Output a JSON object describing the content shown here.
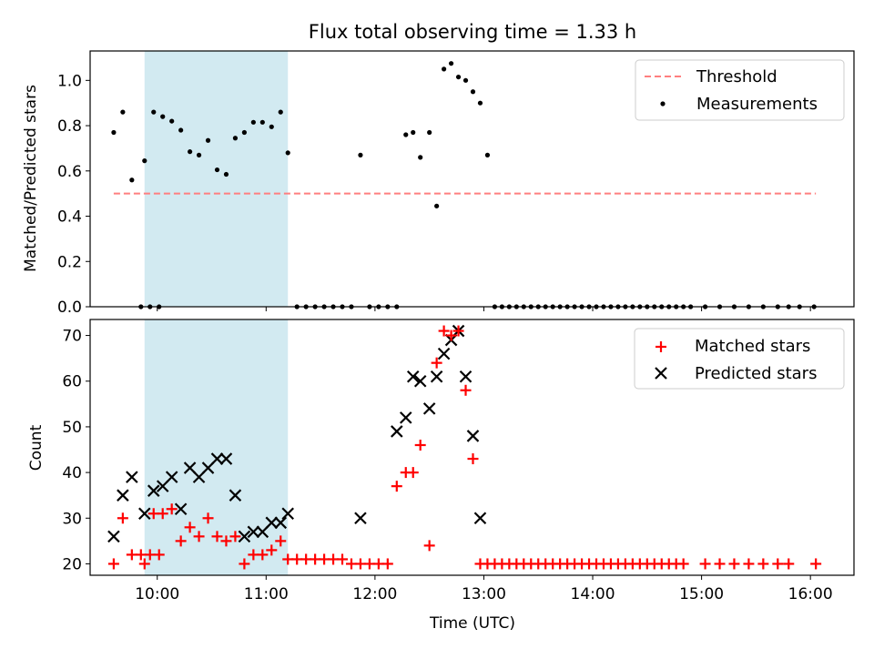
{
  "chart_data": [
    {
      "type": "scatter",
      "title": "Flux total observing time = 1.33 h",
      "ylabel": "Matched/Predicted stars",
      "xlabel": "",
      "xlim": [
        "09:23",
        "16:24"
      ],
      "ylim": [
        0.0,
        1.13
      ],
      "yticks": [
        "0.0",
        "0.2",
        "0.4",
        "0.6",
        "0.8",
        "1.0"
      ],
      "yticks_values": [
        0,
        0.2,
        0.4,
        0.6,
        0.8,
        1.0
      ],
      "legend": {
        "position": "top-right",
        "threshold_label": "Threshold",
        "measurements_label": "Measurements"
      },
      "threshold": {
        "value": 0.5,
        "x_start": "09:36",
        "x_end": "16:03",
        "color": "#ff7f7f"
      },
      "highlight_span": {
        "x_start": "09:53",
        "x_end": "11:12",
        "color": "#add8e6"
      },
      "series": [
        {
          "name": "Measurements",
          "color": "#000000",
          "points": [
            [
              "09:36",
              0.77
            ],
            [
              "09:41",
              0.86
            ],
            [
              "09:46",
              0.56
            ],
            [
              "09:51",
              0.0
            ],
            [
              "09:56",
              0.0
            ],
            [
              "10:01",
              0.0
            ],
            [
              "09:53",
              0.645
            ],
            [
              "09:58",
              0.86
            ],
            [
              "10:03",
              0.84
            ],
            [
              "10:08",
              0.82
            ],
            [
              "10:13",
              0.78
            ],
            [
              "10:18",
              0.685
            ],
            [
              "10:23",
              0.67
            ],
            [
              "10:28",
              0.735
            ],
            [
              "10:33",
              0.605
            ],
            [
              "10:38",
              0.585
            ],
            [
              "10:43",
              0.745
            ],
            [
              "10:48",
              0.77
            ],
            [
              "10:53",
              0.815
            ],
            [
              "10:58",
              0.815
            ],
            [
              "11:03",
              0.795
            ],
            [
              "11:08",
              0.86
            ],
            [
              "11:12",
              0.68
            ],
            [
              "11:17",
              0.0
            ],
            [
              "11:22",
              0.0
            ],
            [
              "11:27",
              0.0
            ],
            [
              "11:32",
              0.0
            ],
            [
              "11:37",
              0.0
            ],
            [
              "11:42",
              0.0
            ],
            [
              "11:47",
              0.0
            ],
            [
              "11:52",
              0.67
            ],
            [
              "11:57",
              0.0
            ],
            [
              "12:02",
              0.0
            ],
            [
              "12:07",
              0.0
            ],
            [
              "12:12",
              0.0
            ],
            [
              "12:17",
              0.76
            ],
            [
              "12:21",
              0.77
            ],
            [
              "12:25",
              0.66
            ],
            [
              "12:30",
              0.77
            ],
            [
              "12:34",
              0.445
            ],
            [
              "12:38",
              1.05
            ],
            [
              "12:42",
              1.075
            ],
            [
              "12:46",
              1.015
            ],
            [
              "12:50",
              1.0
            ],
            [
              "12:54",
              0.95
            ],
            [
              "12:58",
              0.9
            ],
            [
              "13:02",
              0.67
            ],
            [
              "13:06",
              0.0
            ],
            [
              "13:10",
              0.0
            ],
            [
              "13:14",
              0.0
            ],
            [
              "13:18",
              0.0
            ],
            [
              "13:22",
              0.0
            ],
            [
              "13:26",
              0.0
            ],
            [
              "13:30",
              0.0
            ],
            [
              "13:34",
              0.0
            ],
            [
              "13:38",
              0.0
            ],
            [
              "13:42",
              0.0
            ],
            [
              "13:46",
              0.0
            ],
            [
              "13:50",
              0.0
            ],
            [
              "13:54",
              0.0
            ],
            [
              "13:58",
              0.0
            ],
            [
              "14:02",
              0.0
            ],
            [
              "14:06",
              0.0
            ],
            [
              "14:10",
              0.0
            ],
            [
              "14:14",
              0.0
            ],
            [
              "14:18",
              0.0
            ],
            [
              "14:22",
              0.0
            ],
            [
              "14:26",
              0.0
            ],
            [
              "14:30",
              0.0
            ],
            [
              "14:34",
              0.0
            ],
            [
              "14:38",
              0.0
            ],
            [
              "14:42",
              0.0
            ],
            [
              "14:46",
              0.0
            ],
            [
              "14:50",
              0.0
            ],
            [
              "14:54",
              0.0
            ],
            [
              "15:02",
              0.0
            ],
            [
              "15:10",
              0.0
            ],
            [
              "15:18",
              0.0
            ],
            [
              "15:26",
              0.0
            ],
            [
              "15:34",
              0.0
            ],
            [
              "15:42",
              0.0
            ],
            [
              "15:48",
              0.0
            ],
            [
              "15:54",
              0.0
            ],
            [
              "16:02",
              0.0
            ]
          ]
        }
      ]
    },
    {
      "type": "scatter",
      "title": "",
      "xlabel": "Time (UTC)",
      "ylabel": "Count",
      "xlim": [
        "09:23",
        "16:24"
      ],
      "ylim": [
        17.5,
        73.5
      ],
      "xticks": [
        "10:00",
        "11:00",
        "12:00",
        "13:00",
        "14:00",
        "15:00",
        "16:00"
      ],
      "yticks": [
        "20",
        "30",
        "40",
        "50",
        "60",
        "70"
      ],
      "yticks_values": [
        20,
        30,
        40,
        50,
        60,
        70
      ],
      "legend": {
        "position": "top-right",
        "matched_label": "Matched stars",
        "predicted_label": "Predicted stars"
      },
      "highlight_span": {
        "x_start": "09:53",
        "x_end": "11:12",
        "color": "#add8e6"
      },
      "series": [
        {
          "name": "Matched stars",
          "marker": "plus",
          "color": "#ff0000",
          "points": [
            [
              "09:36",
              20
            ],
            [
              "09:41",
              30
            ],
            [
              "09:46",
              22
            ],
            [
              "09:51",
              22
            ],
            [
              "09:56",
              22
            ],
            [
              "10:01",
              22
            ],
            [
              "09:53",
              20
            ],
            [
              "09:58",
              31
            ],
            [
              "10:03",
              31
            ],
            [
              "10:08",
              32
            ],
            [
              "10:13",
              25
            ],
            [
              "10:18",
              28
            ],
            [
              "10:23",
              26
            ],
            [
              "10:28",
              30
            ],
            [
              "10:33",
              26
            ],
            [
              "10:38",
              25
            ],
            [
              "10:43",
              26
            ],
            [
              "10:48",
              20
            ],
            [
              "10:53",
              22
            ],
            [
              "10:58",
              22
            ],
            [
              "11:03",
              23
            ],
            [
              "11:08",
              25
            ],
            [
              "11:12",
              21
            ],
            [
              "11:17",
              21
            ],
            [
              "11:22",
              21
            ],
            [
              "11:27",
              21
            ],
            [
              "11:32",
              21
            ],
            [
              "11:37",
              21
            ],
            [
              "11:42",
              21
            ],
            [
              "11:47",
              20
            ],
            [
              "11:52",
              20
            ],
            [
              "11:57",
              20
            ],
            [
              "12:02",
              20
            ],
            [
              "12:07",
              20
            ],
            [
              "12:12",
              37
            ],
            [
              "12:17",
              40
            ],
            [
              "12:21",
              40
            ],
            [
              "12:25",
              46
            ],
            [
              "12:30",
              24
            ],
            [
              "12:34",
              64
            ],
            [
              "12:38",
              71
            ],
            [
              "12:42",
              70
            ],
            [
              "12:46",
              71
            ],
            [
              "12:50",
              58
            ],
            [
              "12:54",
              43
            ],
            [
              "12:58",
              20
            ],
            [
              "13:02",
              20
            ],
            [
              "13:06",
              20
            ],
            [
              "13:10",
              20
            ],
            [
              "13:14",
              20
            ],
            [
              "13:18",
              20
            ],
            [
              "13:22",
              20
            ],
            [
              "13:26",
              20
            ],
            [
              "13:30",
              20
            ],
            [
              "13:34",
              20
            ],
            [
              "13:38",
              20
            ],
            [
              "13:42",
              20
            ],
            [
              "13:46",
              20
            ],
            [
              "13:50",
              20
            ],
            [
              "13:54",
              20
            ],
            [
              "13:58",
              20
            ],
            [
              "14:02",
              20
            ],
            [
              "14:06",
              20
            ],
            [
              "14:10",
              20
            ],
            [
              "14:14",
              20
            ],
            [
              "14:18",
              20
            ],
            [
              "14:22",
              20
            ],
            [
              "14:26",
              20
            ],
            [
              "14:30",
              20
            ],
            [
              "14:34",
              20
            ],
            [
              "14:38",
              20
            ],
            [
              "14:42",
              20
            ],
            [
              "14:46",
              20
            ],
            [
              "14:50",
              20
            ],
            [
              "15:02",
              20
            ],
            [
              "15:10",
              20
            ],
            [
              "15:18",
              20
            ],
            [
              "15:26",
              20
            ],
            [
              "15:34",
              20
            ],
            [
              "15:42",
              20
            ],
            [
              "15:48",
              20
            ],
            [
              "16:03",
              20
            ]
          ]
        },
        {
          "name": "Predicted stars",
          "marker": "x",
          "color": "#000000",
          "points": [
            [
              "09:36",
              26
            ],
            [
              "09:41",
              35
            ],
            [
              "09:46",
              39
            ],
            [
              "09:53",
              31
            ],
            [
              "09:58",
              36
            ],
            [
              "10:03",
              37
            ],
            [
              "10:08",
              39
            ],
            [
              "10:13",
              32
            ],
            [
              "10:18",
              41
            ],
            [
              "10:23",
              39
            ],
            [
              "10:28",
              41
            ],
            [
              "10:33",
              43
            ],
            [
              "10:38",
              43
            ],
            [
              "10:43",
              35
            ],
            [
              "10:48",
              26
            ],
            [
              "10:53",
              27
            ],
            [
              "10:58",
              27
            ],
            [
              "11:03",
              29
            ],
            [
              "11:08",
              29
            ],
            [
              "11:12",
              31
            ],
            [
              "11:52",
              30
            ],
            [
              "12:12",
              49
            ],
            [
              "12:17",
              52
            ],
            [
              "12:21",
              61
            ],
            [
              "12:25",
              60
            ],
            [
              "12:30",
              54
            ],
            [
              "12:34",
              61
            ],
            [
              "12:38",
              66
            ],
            [
              "12:42",
              69
            ],
            [
              "12:46",
              71
            ],
            [
              "12:50",
              61
            ],
            [
              "12:54",
              48
            ],
            [
              "12:58",
              30
            ]
          ]
        }
      ]
    }
  ]
}
